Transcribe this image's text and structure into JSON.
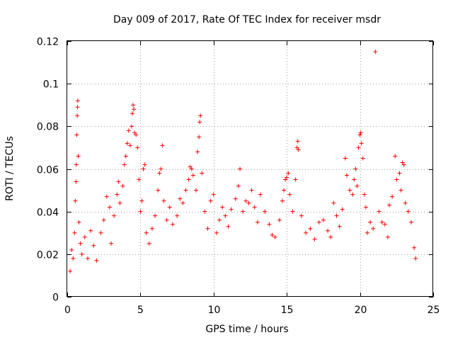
{
  "chart_data": {
    "type": "scatter",
    "title": "Day 009 of 2017, Rate Of TEC Index for receiver msdr",
    "xlabel": "GPS time / hours",
    "ylabel": "ROTI / TECUs",
    "xlim": [
      0,
      25
    ],
    "ylim": [
      0,
      0.12
    ],
    "x_ticks": [
      0,
      5,
      10,
      15,
      20,
      25
    ],
    "y_ticks": [
      0,
      0.02,
      0.04,
      0.06,
      0.08,
      0.1,
      0.12
    ],
    "x_tick_labels": [
      "0",
      "5",
      "10",
      "15",
      "20",
      "25"
    ],
    "y_tick_labels": [
      "0",
      "0.02",
      "0.04",
      "0.06",
      "0.08",
      "0.1",
      "0.12"
    ],
    "grid": true,
    "marker": "+",
    "color": "#ff0000",
    "series": [
      {
        "name": "ROTI",
        "points": [
          [
            0.2,
            0.012
          ],
          [
            0.3,
            0.022
          ],
          [
            0.4,
            0.018
          ],
          [
            0.5,
            0.03
          ],
          [
            0.55,
            0.045
          ],
          [
            0.6,
            0.054
          ],
          [
            0.62,
            0.062
          ],
          [
            0.65,
            0.076
          ],
          [
            0.68,
            0.085
          ],
          [
            0.7,
            0.089
          ],
          [
            0.72,
            0.092
          ],
          [
            0.75,
            0.066
          ],
          [
            0.8,
            0.035
          ],
          [
            0.9,
            0.025
          ],
          [
            1.0,
            0.02
          ],
          [
            1.2,
            0.028
          ],
          [
            1.4,
            0.018
          ],
          [
            1.6,
            0.031
          ],
          [
            1.8,
            0.024
          ],
          [
            2.0,
            0.017
          ],
          [
            2.3,
            0.03
          ],
          [
            2.5,
            0.036
          ],
          [
            2.7,
            0.047
          ],
          [
            2.9,
            0.042
          ],
          [
            3.0,
            0.025
          ],
          [
            3.2,
            0.038
          ],
          [
            3.4,
            0.048
          ],
          [
            3.5,
            0.054
          ],
          [
            3.6,
            0.044
          ],
          [
            3.8,
            0.052
          ],
          [
            3.9,
            0.062
          ],
          [
            4.0,
            0.066
          ],
          [
            4.1,
            0.072
          ],
          [
            4.2,
            0.078
          ],
          [
            4.3,
            0.071
          ],
          [
            4.4,
            0.08
          ],
          [
            4.45,
            0.086
          ],
          [
            4.5,
            0.09
          ],
          [
            4.55,
            0.088
          ],
          [
            4.6,
            0.077
          ],
          [
            4.7,
            0.076
          ],
          [
            4.8,
            0.07
          ],
          [
            4.9,
            0.055
          ],
          [
            5.0,
            0.04
          ],
          [
            5.1,
            0.045
          ],
          [
            5.2,
            0.06
          ],
          [
            5.3,
            0.062
          ],
          [
            5.4,
            0.03
          ],
          [
            5.6,
            0.025
          ],
          [
            5.8,
            0.032
          ],
          [
            6.0,
            0.038
          ],
          [
            6.2,
            0.05
          ],
          [
            6.3,
            0.058
          ],
          [
            6.4,
            0.06
          ],
          [
            6.5,
            0.071
          ],
          [
            6.6,
            0.045
          ],
          [
            6.8,
            0.036
          ],
          [
            7.0,
            0.042
          ],
          [
            7.2,
            0.034
          ],
          [
            7.5,
            0.038
          ],
          [
            7.7,
            0.046
          ],
          [
            7.9,
            0.044
          ],
          [
            8.1,
            0.05
          ],
          [
            8.3,
            0.055
          ],
          [
            8.4,
            0.061
          ],
          [
            8.5,
            0.06
          ],
          [
            8.6,
            0.057
          ],
          [
            8.8,
            0.05
          ],
          [
            8.9,
            0.068
          ],
          [
            9.0,
            0.075
          ],
          [
            9.05,
            0.082
          ],
          [
            9.1,
            0.085
          ],
          [
            9.2,
            0.058
          ],
          [
            9.4,
            0.04
          ],
          [
            9.6,
            0.032
          ],
          [
            9.8,
            0.045
          ],
          [
            10.0,
            0.048
          ],
          [
            10.2,
            0.03
          ],
          [
            10.4,
            0.036
          ],
          [
            10.6,
            0.042
          ],
          [
            10.8,
            0.038
          ],
          [
            11.0,
            0.033
          ],
          [
            11.2,
            0.041
          ],
          [
            11.5,
            0.046
          ],
          [
            11.7,
            0.052
          ],
          [
            11.8,
            0.06
          ],
          [
            12.0,
            0.04
          ],
          [
            12.2,
            0.045
          ],
          [
            12.4,
            0.044
          ],
          [
            12.6,
            0.05
          ],
          [
            12.8,
            0.042
          ],
          [
            13.0,
            0.035
          ],
          [
            13.2,
            0.048
          ],
          [
            13.5,
            0.04
          ],
          [
            13.8,
            0.034
          ],
          [
            14.0,
            0.029
          ],
          [
            14.2,
            0.028
          ],
          [
            14.5,
            0.036
          ],
          [
            14.7,
            0.045
          ],
          [
            14.8,
            0.05
          ],
          [
            14.9,
            0.055
          ],
          [
            15.0,
            0.056
          ],
          [
            15.1,
            0.058
          ],
          [
            15.2,
            0.048
          ],
          [
            15.4,
            0.04
          ],
          [
            15.6,
            0.055
          ],
          [
            15.7,
            0.07
          ],
          [
            15.75,
            0.073
          ],
          [
            15.8,
            0.069
          ],
          [
            16.0,
            0.038
          ],
          [
            16.3,
            0.03
          ],
          [
            16.6,
            0.032
          ],
          [
            16.9,
            0.027
          ],
          [
            17.2,
            0.035
          ],
          [
            17.5,
            0.036
          ],
          [
            17.8,
            0.031
          ],
          [
            18.0,
            0.028
          ],
          [
            18.2,
            0.044
          ],
          [
            18.4,
            0.038
          ],
          [
            18.6,
            0.033
          ],
          [
            18.8,
            0.041
          ],
          [
            19.0,
            0.065
          ],
          [
            19.1,
            0.057
          ],
          [
            19.3,
            0.05
          ],
          [
            19.5,
            0.048
          ],
          [
            19.6,
            0.055
          ],
          [
            19.7,
            0.06
          ],
          [
            19.8,
            0.052
          ],
          [
            19.9,
            0.07
          ],
          [
            20.0,
            0.076
          ],
          [
            20.05,
            0.077
          ],
          [
            20.1,
            0.072
          ],
          [
            20.2,
            0.065
          ],
          [
            20.3,
            0.048
          ],
          [
            20.4,
            0.042
          ],
          [
            20.5,
            0.03
          ],
          [
            20.7,
            0.035
          ],
          [
            20.9,
            0.032
          ],
          [
            21.05,
            0.115
          ],
          [
            21.3,
            0.04
          ],
          [
            21.5,
            0.035
          ],
          [
            21.7,
            0.034
          ],
          [
            21.9,
            0.028
          ],
          [
            22.0,
            0.043
          ],
          [
            22.2,
            0.047
          ],
          [
            22.4,
            0.066
          ],
          [
            22.5,
            0.055
          ],
          [
            22.7,
            0.058
          ],
          [
            22.8,
            0.05
          ],
          [
            22.9,
            0.063
          ],
          [
            23.0,
            0.062
          ],
          [
            23.1,
            0.044
          ],
          [
            23.3,
            0.04
          ],
          [
            23.5,
            0.035
          ],
          [
            23.7,
            0.023
          ],
          [
            23.8,
            0.018
          ]
        ]
      }
    ]
  }
}
